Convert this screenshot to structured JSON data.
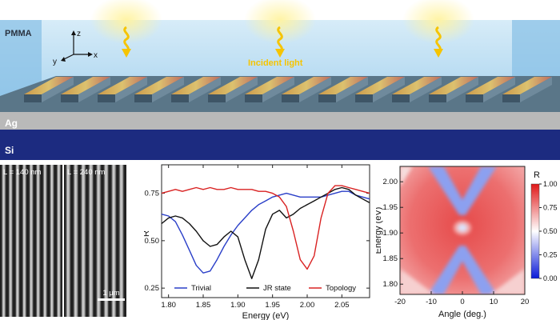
{
  "schematic": {
    "layer_labels": {
      "pmma": "PMMA",
      "ag": "Ag",
      "si": "Si"
    },
    "axis_labels": {
      "z": "z",
      "x": "x",
      "y": "y"
    },
    "incident_label": "Incident light",
    "colors": {
      "pmma": "#b7dcf2",
      "ag": "#b9b9b9",
      "si": "#1c2b80",
      "light": "#f6c400",
      "grating": "#5c7990"
    }
  },
  "sem": {
    "left_label": "L = 140 nm",
    "right_label": "L = 240 nm",
    "scale_bar": "1 μm"
  },
  "chart_data": [
    {
      "type": "line",
      "xlabel": "Energy (eV)",
      "ylabel": "R",
      "xlim": [
        1.79,
        2.09
      ],
      "ylim": [
        0.2,
        0.9
      ],
      "xticks": [
        "1.80",
        "1.85",
        "1.90",
        "1.95",
        "2.00",
        "2.05"
      ],
      "yticks": [
        "0.25",
        "0.50",
        "0.75"
      ],
      "legend_placement": "bottom",
      "series": [
        {
          "name": "Trivial",
          "color": "#2a3fc8",
          "x": [
            1.79,
            1.8,
            1.81,
            1.82,
            1.83,
            1.84,
            1.85,
            1.86,
            1.87,
            1.88,
            1.89,
            1.9,
            1.91,
            1.92,
            1.93,
            1.94,
            1.95,
            1.96,
            1.97,
            1.98,
            1.99,
            2.0,
            2.01,
            2.02,
            2.03,
            2.04,
            2.05,
            2.06,
            2.07,
            2.08,
            2.09
          ],
          "y": [
            0.64,
            0.63,
            0.6,
            0.53,
            0.45,
            0.37,
            0.33,
            0.34,
            0.4,
            0.47,
            0.53,
            0.58,
            0.62,
            0.66,
            0.69,
            0.71,
            0.73,
            0.74,
            0.75,
            0.74,
            0.73,
            0.73,
            0.73,
            0.73,
            0.74,
            0.75,
            0.76,
            0.76,
            0.74,
            0.73,
            0.72
          ]
        },
        {
          "name": "JR state",
          "color": "#111111",
          "x": [
            1.79,
            1.8,
            1.81,
            1.82,
            1.83,
            1.84,
            1.85,
            1.86,
            1.87,
            1.88,
            1.89,
            1.9,
            1.91,
            1.92,
            1.93,
            1.94,
            1.95,
            1.96,
            1.97,
            1.98,
            1.99,
            2.0,
            2.01,
            2.02,
            2.03,
            2.04,
            2.05,
            2.06,
            2.07,
            2.08,
            2.09
          ],
          "y": [
            0.59,
            0.62,
            0.63,
            0.62,
            0.59,
            0.55,
            0.5,
            0.47,
            0.48,
            0.52,
            0.55,
            0.52,
            0.4,
            0.3,
            0.4,
            0.56,
            0.64,
            0.66,
            0.62,
            0.64,
            0.67,
            0.69,
            0.71,
            0.73,
            0.75,
            0.77,
            0.78,
            0.77,
            0.74,
            0.72,
            0.7
          ]
        },
        {
          "name": "Topology",
          "color": "#d92222",
          "x": [
            1.79,
            1.8,
            1.81,
            1.82,
            1.83,
            1.84,
            1.85,
            1.86,
            1.87,
            1.88,
            1.89,
            1.9,
            1.91,
            1.92,
            1.93,
            1.94,
            1.95,
            1.96,
            1.97,
            1.98,
            1.99,
            2.0,
            2.01,
            2.02,
            2.03,
            2.04,
            2.05,
            2.06,
            2.07,
            2.08,
            2.09
          ],
          "y": [
            0.75,
            0.76,
            0.77,
            0.76,
            0.77,
            0.78,
            0.77,
            0.78,
            0.77,
            0.77,
            0.78,
            0.77,
            0.77,
            0.77,
            0.76,
            0.76,
            0.75,
            0.73,
            0.68,
            0.55,
            0.4,
            0.35,
            0.42,
            0.62,
            0.75,
            0.79,
            0.79,
            0.78,
            0.77,
            0.76,
            0.75
          ]
        }
      ]
    },
    {
      "type": "heatmap",
      "xlabel": "Angle (deg.)",
      "ylabel": "Energy (eV)",
      "xlim": [
        -20,
        20
      ],
      "ylim": [
        1.78,
        2.03
      ],
      "xticks": [
        "-20",
        "-10",
        "0",
        "10",
        "20"
      ],
      "yticks": [
        "1.80",
        "1.85",
        "1.90",
        "1.95",
        "2.00"
      ],
      "colorbar": {
        "title": "R",
        "ticks": [
          "0.00",
          "0.25",
          "0.50",
          "0.75",
          "1.00"
        ],
        "low_color": "#0a1ad8",
        "mid_color": "#ffffff",
        "high_color": "#e01818"
      },
      "features": {
        "background_R": 0.85,
        "dip_R": 0.45,
        "center_spot": {
          "angle": 0,
          "energy": 1.91
        }
      }
    }
  ]
}
